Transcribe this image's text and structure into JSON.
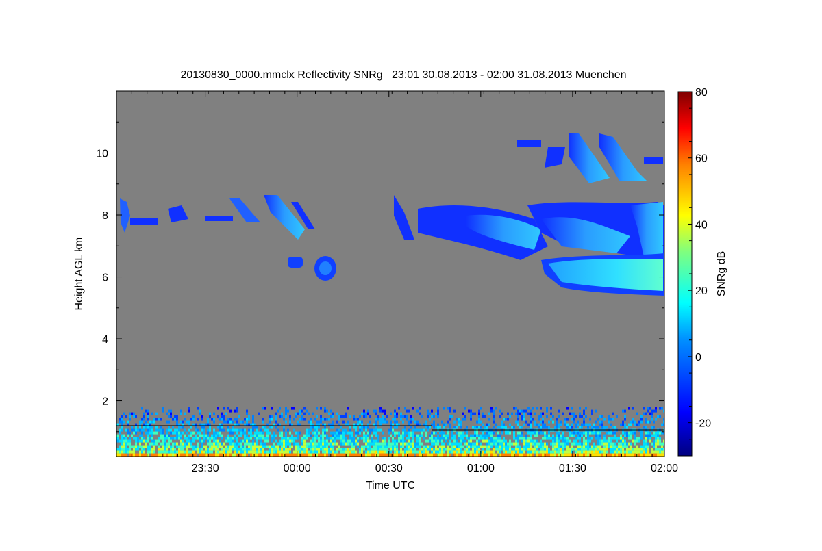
{
  "chart_data": {
    "type": "heatmap",
    "title": "20130830_0000.mmclx Reflectivity SNRg   23:01 30.08.2013 - 02:00 31.08.2013 Muenchen",
    "xlabel": "Time UTC",
    "ylabel": "Height AGL km",
    "x_start_minutes": 0,
    "x_end_minutes": 179,
    "x_ticks": [
      {
        "label": "23:30",
        "minutes": 29
      },
      {
        "label": "00:00",
        "minutes": 59
      },
      {
        "label": "00:30",
        "minutes": 89
      },
      {
        "label": "01:00",
        "minutes": 119
      },
      {
        "label": "01:30",
        "minutes": 149
      },
      {
        "label": "02:00",
        "minutes": 179
      }
    ],
    "ylim": [
      0.2,
      12.0
    ],
    "y_ticks": [
      {
        "label": "2",
        "value": 2
      },
      {
        "label": "4",
        "value": 4
      },
      {
        "label": "6",
        "value": 6
      },
      {
        "label": "8",
        "value": 8
      },
      {
        "label": "10",
        "value": 10
      }
    ],
    "colorbar": {
      "label": "SNRg dB",
      "range": [
        -30,
        80
      ],
      "ticks": [
        {
          "label": "-20",
          "value": -20
        },
        {
          "label": "0",
          "value": 0
        },
        {
          "label": "20",
          "value": 20
        },
        {
          "label": "40",
          "value": 40
        },
        {
          "label": "60",
          "value": 60
        },
        {
          "label": "80",
          "value": 80
        }
      ]
    },
    "background_color": "#808080",
    "features": [
      {
        "name": "cirrus-patches-early",
        "t0": 0,
        "t1": 62,
        "h0": 7.4,
        "h1": 8.8,
        "snr": -15
      },
      {
        "name": "small-cells",
        "t0": 54,
        "t1": 70,
        "h0": 5.8,
        "h1": 6.7,
        "snr": -15
      },
      {
        "name": "cirrus-band-main",
        "t0": 90,
        "t1": 179,
        "h0": 6.0,
        "h1": 8.7,
        "snr": 0
      },
      {
        "name": "lower-thick-cloud",
        "t0": 140,
        "t1": 179,
        "h0": 5.4,
        "h1": 6.6,
        "snr": 10
      },
      {
        "name": "upper-cirrus",
        "t0": 132,
        "t1": 179,
        "h0": 9.0,
        "h1": 10.7,
        "snr": -10
      },
      {
        "name": "boundary-layer-clutter",
        "t0": 0,
        "t1": 179,
        "h0": 0.2,
        "h1": 1.8,
        "snr": 0
      }
    ]
  }
}
